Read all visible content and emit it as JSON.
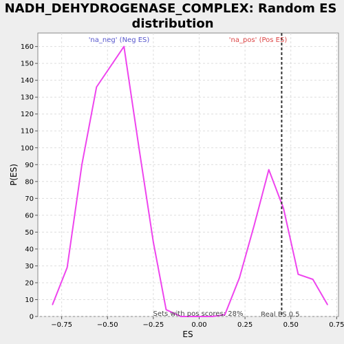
{
  "chart_data": {
    "type": "line",
    "title_line1": "NADH_DEHYDROGENASE_COMPLEX: Random ES",
    "title_line2": "distribution",
    "xlabel": "ES",
    "ylabel": "P(ES)",
    "xlim": [
      -0.88,
      0.76
    ],
    "ylim": [
      0,
      168
    ],
    "x_ticks": [
      -0.75,
      -0.5,
      -0.25,
      0.0,
      0.25,
      0.5,
      0.75
    ],
    "x_tick_labels": [
      "−0.75",
      "−0.50",
      "−0.25",
      "0.00",
      "0.25",
      "0.50",
      "0.75"
    ],
    "y_ticks": [
      0,
      10,
      20,
      30,
      40,
      50,
      60,
      70,
      80,
      90,
      100,
      110,
      120,
      130,
      140,
      150,
      160
    ],
    "y_tick_labels": [
      "0",
      "10",
      "20",
      "30",
      "40",
      "50",
      "60",
      "70",
      "80",
      "90",
      "100",
      "110",
      "120",
      "130",
      "140",
      "150",
      "160"
    ],
    "grid": true,
    "series": [
      {
        "color": "#ee44ee",
        "x": [
          -0.8,
          -0.72,
          -0.64,
          -0.56,
          -0.41,
          -0.33,
          -0.25,
          -0.18,
          -0.1,
          0.0,
          0.07,
          0.14,
          0.22,
          0.3,
          0.38,
          0.46,
          0.54,
          0.62,
          0.7
        ],
        "y": [
          7,
          29,
          90,
          136,
          160,
          101,
          44,
          4,
          0,
          0,
          0,
          1,
          23,
          54,
          87,
          64,
          25,
          22,
          7
        ]
      }
    ],
    "vline": {
      "x": 0.45,
      "color": "#333333",
      "label": "Real ES 0.5"
    },
    "legend_neg": {
      "text": "'na_neg' (Neg ES)",
      "color": "#5555cc"
    },
    "legend_pos": {
      "text": "'na_pos' (Pos ES)",
      "color": "#dd4444"
    },
    "annotation": "Sets with pos scores: 28%"
  }
}
